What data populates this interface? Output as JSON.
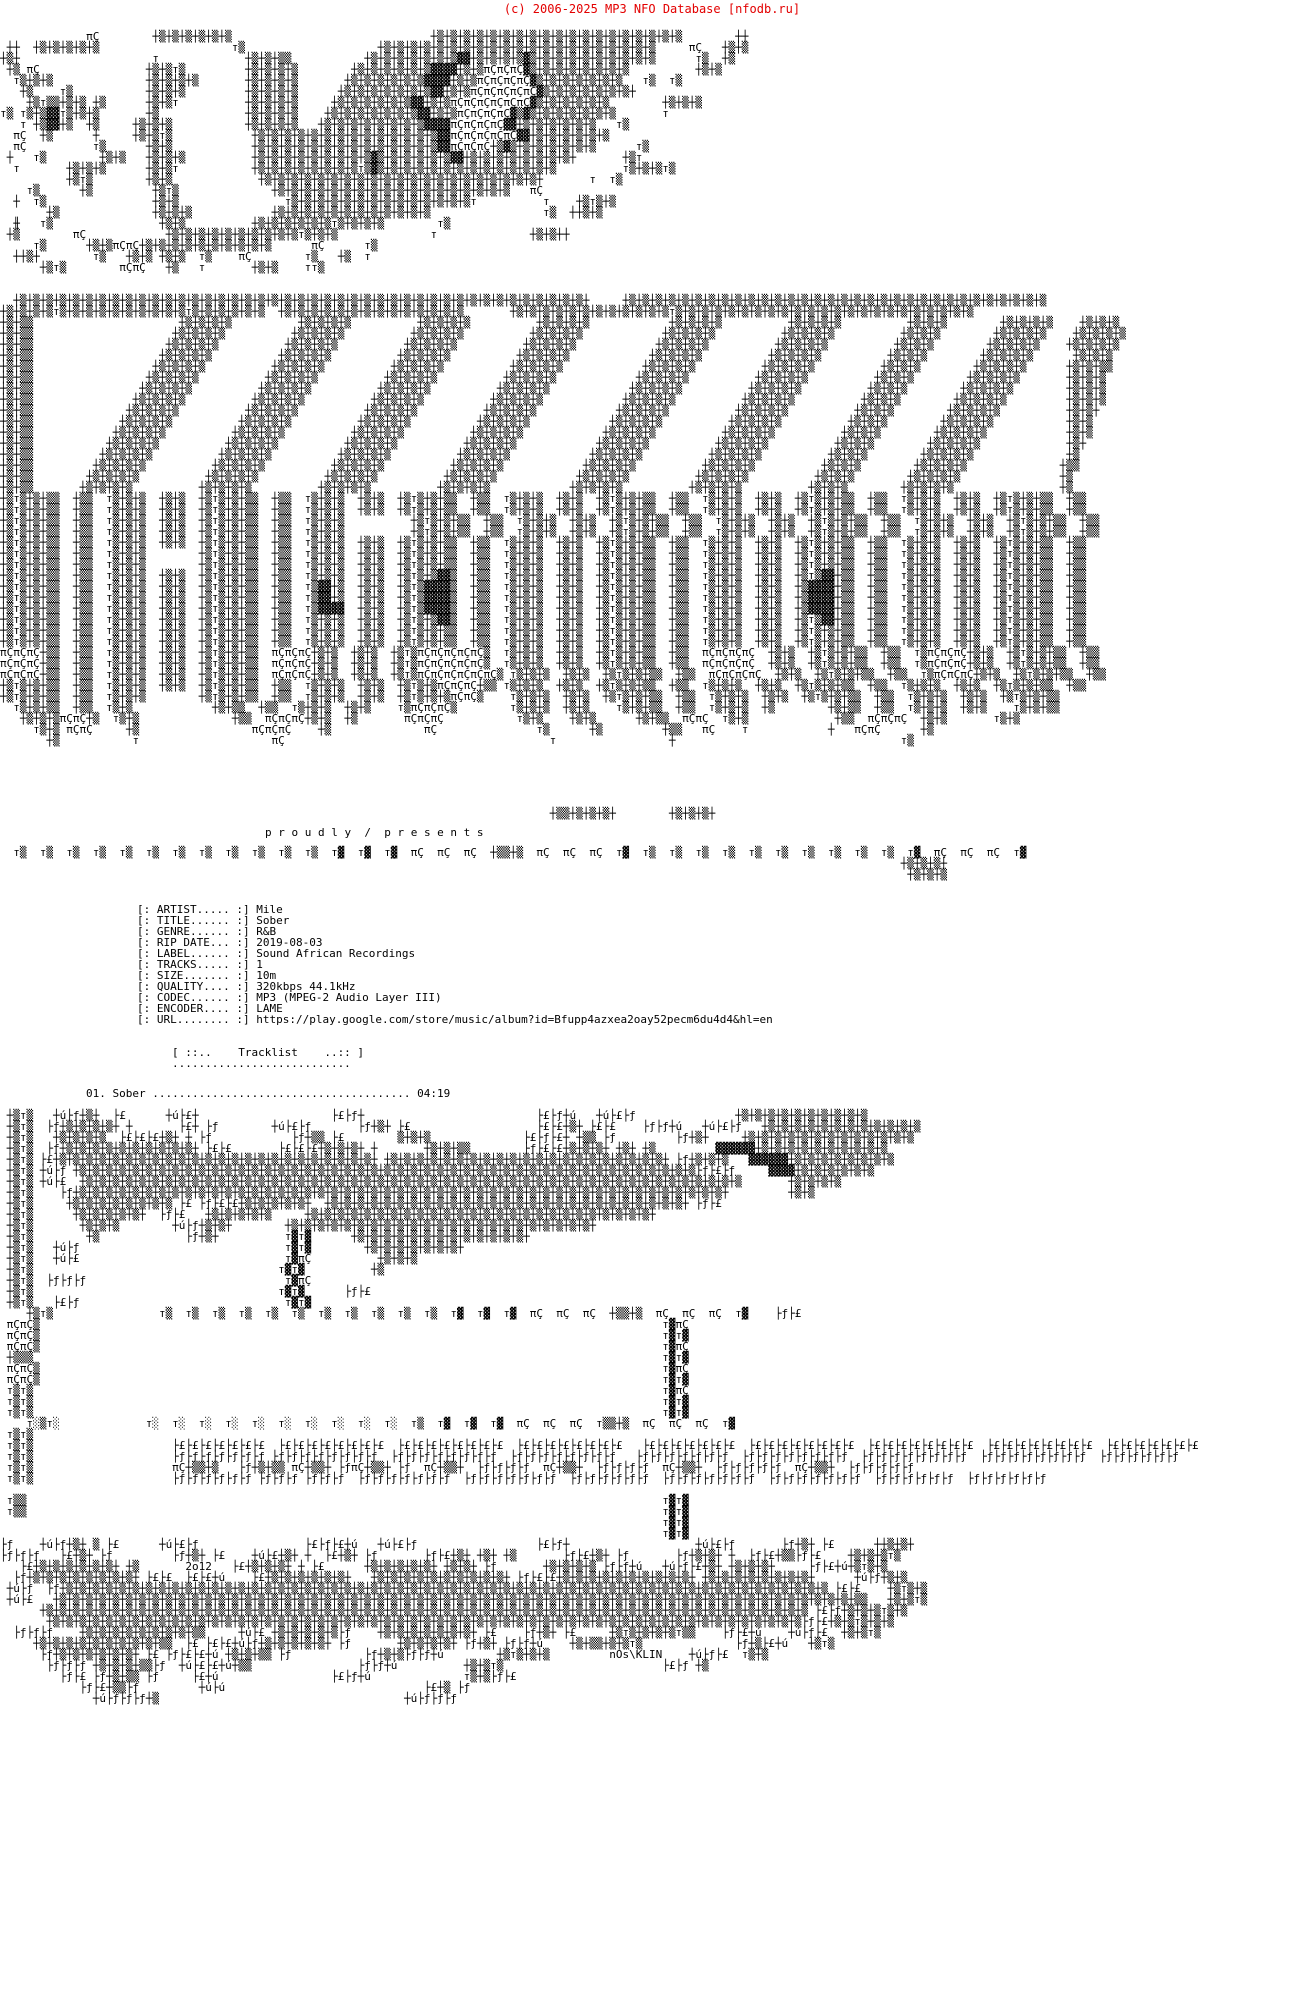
{
  "header": {
    "copyright": "(c) 2006-2025 MP3 NFO Database [nfodb.ru]"
  },
  "release": {
    "fields": [
      {
        "label": "[: ARTIST..... :]",
        "value": "Mile"
      },
      {
        "label": "[: TITLE...... :]",
        "value": "Sober"
      },
      {
        "label": "[: GENRE...... :]",
        "value": "R&B"
      },
      {
        "label": "[: RIP DATE... :]",
        "value": "2019-08-03"
      },
      {
        "label": "[: LABEL...... :]",
        "value": "Sound African Recordings"
      },
      {
        "label": "[: TRACKS..... :]",
        "value": "1"
      },
      {
        "label": "[: SIZE....... :]",
        "value": "10m"
      },
      {
        "label": "[: QUALITY.... :]",
        "value": "320kbps 44.1kHz"
      },
      {
        "label": "[: CODEC...... :]",
        "value": "MP3 (MPEG-2 Audio Layer III)"
      },
      {
        "label": "[: ENCODER.... :]",
        "value": "LAME"
      },
      {
        "label": "[: URL........ :]",
        "value": "https://play.google.com/store/music/album?id=Bfupp4azxea2oay52pecm6du4d4&hl=en"
      }
    ]
  },
  "tracklist": {
    "header": "[ ::..    Tracklist    ..:: ]",
    "underline": "...........................",
    "track": {
      "number": "01.",
      "title": "Sober",
      "leader": ".......................................",
      "duration": "04:19"
    }
  },
  "art": {
    "presents": "p r o u d l y  /  p r e s e n t s",
    "signature": {
      "year": "2o12",
      "artist_tag": "nOs\\KLIN"
    },
    "top": [
      "             πÇ        ┼▒┼▒┼▒┼▒┼▒┼▒                              ┼▒┼▒┼▒┼▒┼▒┼▒┼▒┼▒┼▒┼▒┼▒┼▒┼▒┼▒┼▒┼▒┼▒┼▒┼▒        ┼┼",
      " ┼┼  ┼▒┼▒┼▒┼▒┼▒                    т▒                    ┼▒┼▒┼▒┼▒┼▒┼▒┼▒┼▒┼▒┼▒┼▒┼▒┼▒┼▒┼▒┼▒┼▒┼▒┼▒┼▒┼▒     πÇ   ┼▒┼▒",
      "┼▒┼                    т             ┼▒┼▒┼▒▒           ┼▒┼▒┼▒┼▒┼▒┼▒┼▒▓▓┼▒┼▒┼▒┼▒▓▒┼▒┼▒┼▒┼▒┼▒┼▒┼▒┼▒┼▒      т▒  ┼▒",
      " ┼▒ πÇ                ┼▒┼▒т▒         ┼▒┼▒┼▒┼▒        ┼▒┼▒┼▒┼▒┼▒┼▒▓▓▓▓┼▒┼▒πÇπÇπÇ▓▒┼▒┼▒┼▒┼▒┼▒┼▒┼▒          ┼▒┼▒",
      "  т▒┼▒┼▒              ┼▒┼▒┼▒┼▒       ┼▒┼▒┼▒┼▒       ┼▒┼▒┼▒┼▒┼▒┼▒▓▓▓▓┼▒┼▒πÇπÇπÇπÇ▓▒┼▒┼▒┼▒┼▒┼▒┼▒   т▒  т▒",
      "   ┼▒    т▒           ┼▒┼▒┼▒         ┼▒┼▒┼▒┼▒      ┼▒┼▒┼▒┼▒┼▒┼▒┼▒▓▓┼▒┼▒πÇπÇπÇπÇπÇ▓▒┼▒┼▒┼▒┼▒┼▒┼▒┼",
      "    ┼▒т▒▒┼▒┼▒ ┼▒      ┼▒┼▒т          ┼▒┼▒┼▒┼▒     ┼▒┼▒┼▒┼▒┼▒┼▒▓▓┼▒┼▒πÇπÇπÇπÇπÇπÇ▓▒┼▒┼▒┼▒┼▒┼▒        ┼▒┼▒┼▒",
      "т▒ т▒┼▒▓▓т▒┼▒┼▒       ┼▒             ┼▒┼▒┼▒┼▒    ┼▒┼▒┼▒┼▒┼▒┼▒┼▒▓▓┼▒┼▒πÇπÇπÇπÇ▓▒▓▒┼▒┼▒┼▒┼▒┼▒┼▒       т",
      "   т ┼▒▓▓┼▒  ┼▒     ┼▒┼▒┼▒           ┼▒┼▒┼▒┼▒   ┼▒┼▒┼▒┼▒┼▒┼▒┼▒┼▒▓▓▓▓πÇπÇπÇπÇ▓▓┼▒┼▒┼▒┼▒┼▒┼▒   т▒",
      "  πÇ  ┼▒      ┼     ┼▒┼▒т▒            ┼▒┼▒┼▒┼▒┼▒┼▒┼▒┼▒┼▒┼▒┼▒┼▒┼▒┼▒▓▓πÇπÇπÇπÇπÇ▓▓┼▒┼▒┼▒┼▒┼▒┼▒",
      "  πÇ          т▒      ┼▒┼▒            ┼▒┼▒┼▒┼▒┼▒┼▒┼▒┼▒┼▒┼▒┼▒┼▒┼▒┼▒▓▓πÇπÇπÇ┼▒▓▒┼▒┼▒┼▒┼▒┼▒┼▒      т▒",
      " ┼   т▒        ┼▒┼▒   ┼▒┼▒┼▒          ┼▒┼▒┼▒┼▒┼▒┼▒┼▒┼▒┼▒▓▒┼▒┼▒┼▒┼▒┼▒▓▓┼▒┼▒┼▒┼▒┼▒┼▒┼▒┼▒┼       ┼▒т",
      "  т       ┼▒┼▒┼▒      ┼▒┼▒т           ┼▒┼▒┼▒┼▒┼▒┼▒┼▒┼▒т▒▓▒┼▒┼▒┼▒┼▒┼▒┼▒┼▒┼▒┼▒┼▒┼▒┼▒┼▒          т▒┼▒┼▒т▒",
      "          ┼▒т▒        ┼▒┼▒             ┼▒┼▒┼▒┼▒┼▒┼▒┼▒┼▒┼▒┼▒┼▒┼▒┼▒┼▒┼▒┼▒┼▒┼▒┼▒┼▒┼▒┼       т  т▒",
      "    т▒      ┼▒         ┼▒т▒              ┼▒┼▒┼▒┼▒┼▒┼▒┼▒┼▒┼▒┼▒┼▒┼▒┼▒┼▒┼▒┼▒┼▒┼▒   πÇ",
      "  ┼  т▒                ┼▒┼▒                т▒┼▒┼▒┼▒┼▒┼▒┼▒┼▒┼▒┼▒┼▒┼▒┼▒┼▒т          т    ┼▒т▒┼▒",
      "       ┼▒              ┼▒┼▒┼▒            ┼▒┼▒┼▒┼▒┼▒┼▒┼▒┼▒┼▒┼▒┼▒┼▒                 т▒  ┼┼▒┼▒",
      "  ╫   т▒                ┼▒┼▒          ┼▒┼▒┼▒┼▒┼▒┼▒т▒┼▒┼▒┼▒        т▒",
      " ┼▒        πÇ            ┼▒┼▒┼▒┼▒┼▒┼▒┼▒┼▒┼▒┼▒т▒┼▒┼▒              т              ┼▒┼▒┼┼",
      "     т▒      ┼▒┼▒πÇπÇ┼▒┼▒┼▒┼▒┼▒┼▒┼▒┼▒┼▒┼▒      πÇ      т▒",
      "  ┼┼▒┼        т▒   ┼▒┼▒ ┼▒┼▒  т▒    πÇ        т▒   ┼▒  т",
      "      ┼▒т▒        πÇπÇ   ┼▒   т       ┼▒┼▒    тт▒"
    ],
    "middle": [
      "  ┼▒┼▒┼▒┼▒┼▒┼▒┼▒┼▒┼▒┼▒┼▒┼▒┼▒┼▒┼▒┼▒┼▒┼▒┼▒┼▒┼▒┼▒┼▒┼▒┼▒┼▒┼▒┼▒┼▒┼▒┼▒┼▒┼▒┼▒┼▒┼▒┼▒┼▒┼▒┼▒┼▒┼▒┼▒┼     ┼▒┼▒┼▒┼▒┼▒┼▒┼▒┼▒┼▒┼▒┼▒┼▒┼▒┼▒┼▒┼▒┼▒┼▒┼▒┼▒┼▒┼▒┼▒┼▒┼▒┼▒┼▒┼▒┼▒┼▒┼▒┼▒",
      "┼▒┼▒┼▒┼▒т▒┼▒┼▒┼▒┼▒┼▒┼▒┼▒┼▒┼▒т▒┼▒┼▒┼▒┼▒┼▒  ┼▒┼▒┼▒┼▒┼▒┼▒┼▒┼▒┼▒┼▒┼▒┼▒┼▒┼▒       ┼▒┼▒┼▒┼▒┼▒┼▒┼▒┼▒┼▒┼▒┼▒┼▒т▒┼▒┼▒┼▒┼▒┼▒┼▒┼▒┼▒┼▒┼▒┼▒┼▒┼▒┼▒┼▒┼▒┼▒┼▒┼▒┼▒┼▒┼▒",
      "┼▒┼▒▒                      ┼▒┼▒┼▒┼▒          ┼▒┼▒┼▒┼▒          ┼▒┼▒┼▒┼▒          ┼▒┼▒┼▒┼▒            ┼▒┼▒┼▒┼▒          ┼▒┼▒┼▒┼▒          ┼▒┼▒┼▒        ┼▒┼▒┼▒┼▒    ┼▒┼▒┼▒",
      "┼▒┼▒▒                     ┼▒┼▒┼▒┼▒          ┼▒┼▒┼▒┼▒          ┼▒┼▒┼▒┼▒          ┼▒┼▒┼▒┼▒            ┼▒┼▒┼▒┼▒          ┼▒┼▒┼▒┼▒          ┼▒┼▒┼▒        ┼▒┼▒┼▒┼▒    ┼▒┼▒┼▒┼▒",
      "┼▒┼▒▒                    ┼▒┼▒┼▒┼▒          ┼▒┼▒┼▒┼▒          ┼▒┼▒┼▒┼▒          ┼▒┼▒┼▒┼▒            ┼▒┼▒┼▒┼▒          ┼▒┼▒┼▒┼▒          ┼▒┼▒┼▒        ┼▒┼▒┼▒┼▒    ┼▒┼▒┼▒┼▒",
      "┼▒┼▒▒                   ┼▒┼▒┼▒┼▒          ┼▒┼▒┼▒┼▒          ┼▒┼▒┼▒┼▒          ┼▒┼▒┼▒┼▒            ┼▒┼▒┼▒┼▒          ┼▒┼▒┼▒┼▒          ┼▒┼▒┼▒        ┼▒┼▒┼▒┼▒      ┼▒┼▒┼▒",
      "┼▒┼▒▒                  ┼▒┼▒┼▒┼▒          ┼▒┼▒┼▒┼▒          ┼▒┼▒┼▒┼▒          ┼▒┼▒┼▒┼▒            ┼▒┼▒┼▒┼▒          ┼▒┼▒┼▒┼▒          ┼▒┼▒┼▒        ┼▒┼▒┼▒┼▒      ┼▒┼▒┼▒▒",
      "┼▒┼▒▒                 ┼▒┼▒┼▒┼▒          ┼▒┼▒┼▒┼▒          ┼▒┼▒┼▒┼▒          ┼▒┼▒┼▒┼▒            ┼▒┼▒┼▒┼▒          ┼▒┼▒┼▒┼▒          ┼▒┼▒┼▒        ┼▒┼▒┼▒┼▒       ┼▒┼▒┼▒",
      "┼▒┼▒▒                ┼▒┼▒┼▒┼▒          ┼▒┼▒┼▒┼▒          ┼▒┼▒┼▒┼▒          ┼▒┼▒┼▒┼▒            ┼▒┼▒┼▒┼▒          ┼▒┼▒┼▒┼▒          ┼▒┼▒┼▒        ┼▒┼▒┼▒┼▒        ┼▒┼▒┼▒",
      "┼▒┼▒▒               ┼▒┼▒┼▒┼▒          ┼▒┼▒┼▒┼▒          ┼▒┼▒┼▒┼▒          ┼▒┼▒┼▒┼▒            ┼▒┼▒┼▒┼▒          ┼▒┼▒┼▒┼▒          ┼▒┼▒┼▒        ┼▒┼▒┼▒┼▒         ┼▒┼▒┼▒",
      "┼▒┼▒▒              ┼▒┼▒┼▒┼▒          ┼▒┼▒┼▒┼▒          ┼▒┼▒┼▒┼▒          ┼▒┼▒┼▒┼▒            ┼▒┼▒┼▒┼▒          ┼▒┼▒┼▒┼▒          ┼▒┼▒┼▒        ┼▒┼▒┼▒┼▒          ┼▒┼▒┼",
      "┼▒┼▒▒             ┼▒┼▒┼▒┼▒          ┼▒┼▒┼▒┼▒          ┼▒┼▒┼▒┼▒          ┼▒┼▒┼▒┼▒            ┼▒┼▒┼▒┼▒          ┼▒┼▒┼▒┼▒          ┼▒┼▒┼▒        ┼▒┼▒┼▒┼▒           ┼▒┼▒",
      "┼▒┼▒▒            ┼▒┼▒┼▒┼▒          ┼▒┼▒┼▒┼▒          ┼▒┼▒┼▒┼▒          ┼▒┼▒┼▒┼▒            ┼▒┼▒┼▒┼▒          ┼▒┼▒┼▒┼▒          ┼▒┼▒┼▒        ┼▒┼▒┼▒┼▒            ┼▒┼▒",
      "┼▒┼▒▒           ┼▒┼▒┼▒┼▒          ┼▒┼▒┼▒┼▒          ┼▒┼▒┼▒┼▒          ┼▒┼▒┼▒┼▒            ┼▒┼▒┼▒┼▒          ┼▒┼▒┼▒┼▒          ┼▒┼▒┼▒        ┼▒┼▒┼▒┼▒             ┼▒┼",
      "┼▒┼▒▒          ┼▒┼▒┼▒┼▒          ┼▒┼▒┼▒┼▒          ┼▒┼▒┼▒┼▒          ┼▒┼▒┼▒┼▒            ┼▒┼▒┼▒┼▒          ┼▒┼▒┼▒┼▒          ┼▒┼▒┼▒        ┼▒┼▒┼▒┼▒              ┼▒",
      "┼▒┼▒▒         ┼▒┼▒┼▒┼▒          ┼▒┼▒┼▒┼▒          ┼▒┼▒┼▒┼▒          ┼▒┼▒┼▒┼▒            ┼▒┼▒┼▒┼▒          ┼▒┼▒┼▒┼▒          ┼▒┼▒┼▒        ┼▒┼▒┼▒┼▒              ┼▒▒",
      "┼▒┼▒▒        ┼▒┼▒┼▒┼▒          ┼▒┼▒┼▒┼▒          ┼▒┼▒┼▒┼▒          ┼▒┼▒┼▒┼▒            ┼▒┼▒┼▒┼▒          ┼▒┼▒┼▒┼▒          ┼▒┼▒┼▒        ┼▒┼▒┼▒┼▒               ┼▒",
      "┼▒┼▒▒       ┼▒┼▒┼▒┼▒          ┼▒┼▒┼▒┼▒          ┼▒┼▒┼▒┼▒          ┼▒┼▒┼▒┼▒            ┼▒┼▒┼▒┼▒          ┼▒┼▒┼▒┼▒          ┼▒┼▒┼▒        ┼▒┼▒┼▒┼▒                ┼▒",
      "┼▒т▒┼▒┼▒▒  ┼▒▒  т▒┼▒┼▒  ┼▒┼▒  ┼▒т▒┼▒┼▒▒  ┼▒▒  т▒┼▒┼▒  ┼▒┼▒  ┼▒т▒┼▒┼▒▒  ┼▒▒  т▒┼▒┼▒  ┼▒┼▒  ┼▒т▒┼▒┼▒▒  ┼▒▒  т▒┼▒┼▒  ┼▒┼▒  ┼▒т▒┼▒┼▒▒  ┼▒▒  т▒┼▒┼▒  ┼▒┼▒  ┼▒т▒┼▒┼▒▒  ┼▒▒",
      "┼▒т▒┼▒┼▒▒  ┼▒▒  т▒┼▒┼▒  ┼▒┼▒  ┼▒т▒┼▒┼▒▒  ┼▒▒  т▒┼▒┼▒  ┼▒┼▒  ┼▒т▒┼▒┼▒▒  ┼▒▒  т▒┼▒┼▒  ┼▒┼▒  ┼▒т▒┼▒┼▒▒  ┼▒▒  т▒┼▒┼▒  ┼▒┼▒  ┼▒т▒┼▒┼▒▒  ┼▒▒  т▒┼▒┼▒  ┼▒┼▒  ┼▒т▒┼▒┼▒▒  ┼▒▒",
      "┼▒т▒┼▒┼▒▒  ┼▒▒  т▒┼▒┼▒  ┼▒┼▒  ┼▒т▒┼▒┼▒▒  ┼▒▒  т▒┼▒┼▒          ┼▒т▒┼▒┼▒▒  ┼▒▒  т▒┼▒┼▒  ┼▒┼▒  ┼▒т▒┼▒┼▒▒  ┼▒▒  т▒┼▒┼▒  ┼▒┼▒  ┼▒т▒┼▒┼▒▒  ┼▒▒  т▒┼▒┼▒  ┼▒┼▒  ┼▒т▒┼▒┼▒▒  ┼▒▒",
      "┼▒т▒┼▒┼▒▒  ┼▒▒  т▒┼▒┼▒  ┼▒┼▒  ┼▒т▒┼▒┼▒▒  ┼▒▒  т▒┼▒┼▒          ┼▒т▒┼▒┼▒▒  ┼▒▒  т▒┼▒┼▒  ┼▒┼▒  ┼▒т▒┼▒┼▒▒  ┼▒▒  т▒┼▒┼▒  ┼▒┼▒  ┼▒т▒┼▒┼▒▒  ┼▒▒  т▒┼▒┼▒  ┼▒┼▒  ┼▒т▒┼▒┼▒▒  ┼▒▒",
      "┼▒т▒┼▒┼▒▒  ┼▒▒  т▒┼▒┼▒  ┼▒┼▒  ┼▒т▒┼▒┼▒▒  ┼▒▒  т▒┼▒┼▒  ┼▒┼▒  ┼▒т▒┼▒┼▒▒  ┼▒▒  т▒┼▒┼▒  ┼▒┼▒  ┼▒т▒┼▒┼▒▒  ┼▒▒  т▒┼▒┼▒  ┼▒┼▒  ┼▒т▒┼▒┼▒▒  ┼▒▒  т▒┼▒┼▒  ┼▒┼▒  ┼▒т▒┼▒┼▒▒  ┼▒▒",
      "┼▒т▒┼▒┼▒▒  ┼▒▒  т▒┼▒┼▒        ┼▒т▒┼▒┼▒▒  ┼▒▒  т▒┼▒┼▒  ┼▒┼▒  ┼▒т▒┼▒┼▒▒  ┼▒▒  т▒┼▒┼▒  ┼▒┼▒  ┼▒т▒┼▒┼▒▒  ┼▒▒  т▒┼▒┼▒  ┼▒┼▒  ┼▒т▒┼▒┼▒▒  ┼▒▒  т▒┼▒┼▒  ┼▒┼▒  ┼▒т▒┼▒┼▒▒  ┼▒▒",
      "┼▒т▒┼▒┼▒▒  ┼▒▒  т▒┼▒┼▒        ┼▒т▒┼▒┼▒▒  ┼▒▒  т▒┼▒┼▒  ┼▒┼▒  ┼▒т▒┼▒┼▒▒  ┼▒▒  т▒┼▒┼▒  ┼▒┼▒  ┼▒т▒┼▒┼▒▒  ┼▒▒  т▒┼▒┼▒  ┼▒┼▒  ┼▒т▒┼▒┼▒▒  ┼▒▒  т▒┼▒┼▒  ┼▒┼▒  ┼▒т▒┼▒┼▒▒  ┼▒▒",
      "┼▒т▒┼▒┼▒▒  ┼▒▒  т▒┼▒┼▒  ┼▒┼▒  ┼▒т▒┼▒┼▒▒  ┼▒▒  т▒┼▒┼▒  ┼▒┼▒  ┼▒т▒┼▒▓▓▒  ┼▒▒  т▒┼▒┼▒  ┼▒┼▒  ┼▒т▒┼▒┼▒▒  ┼▒▒  т▒┼▒┼▒  ┼▒┼▒  ┼▒т▒▓▓┼▒▒  ┼▒▒  т▒┼▒┼▒  ┼▒┼▒  ┼▒т▒┼▒┼▒▒  ┼▒▒",
      "┼▒т▒┼▒┼▒▒  ┼▒▒  т▒┼▒┼▒  ┼▒┼▒  ┼▒т▒┼▒┼▒▒  ┼▒▒  т▒▓▓┼▒  ┼▒┼▒  ┼▒т▒▓▓▓▓▒  ┼▒▒  т▒┼▒┼▒  ┼▒┼▒  ┼▒т▒┼▒┼▒▒  ┼▒▒  т▒┼▒┼▒  ┼▒┼▒  ┼▒▓▓▓▓┼▒▒  ┼▒▒  т▒┼▒┼▒  ┼▒┼▒  ┼▒т▒┼▒┼▒▒  ┼▒▒",
      "┼▒т▒┼▒┼▒▒  ┼▒▒  т▒┼▒┼▒  ┼▒┼▒  ┼▒т▒┼▒┼▒▒  ┼▒▒  т▒▓▓┼▒  ┼▒┼▒  ┼▒т▒▓▓▓▓▒  ┼▒▒  т▒┼▒┼▒  ┼▒┼▒  ┼▒т▒┼▒┼▒▒  ┼▒▒  т▒┼▒┼▒  ┼▒┼▒  ┼▒▓▓▓▓┼▒▒  ┼▒▒  т▒┼▒┼▒  ┼▒┼▒  ┼▒т▒┼▒┼▒▒  ┼▒▒",
      "┼▒т▒┼▒┼▒▒  ┼▒▒  т▒┼▒┼▒  ┼▒┼▒  ┼▒т▒┼▒┼▒▒  ┼▒▒  т▒▓▓▓▓  ┼▒┼▒  ┼▒т▒▓▓▓▓▒  ┼▒▒  т▒┼▒┼▒  ┼▒┼▒  ┼▒т▒┼▒┼▒▒  ┼▒▒  т▒┼▒┼▒  ┼▒┼▒  ┼▒▓▓▓▓┼▒▒  ┼▒▒  т▒┼▒┼▒  ┼▒┼▒  ┼▒т▒┼▒┼▒▒  ┼▒▒",
      "┼▒т▒┼▒┼▒▒  ┼▒▒  т▒┼▒┼▒  ┼▒┼▒  ┼▒т▒┼▒┼▒▒  ┼▒▒  т▒┼▒┼▒  ┼▒┼▒  ┼▒т▒┼▒▓▓▒  ┼▒▒  т▒┼▒┼▒  ┼▒┼▒  ┼▒т▒┼▒┼▒▒  ┼▒▒  т▒┼▒┼▒  ┼▒┼▒  ┼▒т▒▓▓┼▒▒  ┼▒▒  т▒┼▒┼▒  ┼▒┼▒  ┼▒т▒┼▒┼▒▒  ┼▒▒",
      "┼▒т▒┼▒┼▒▒  ┼▒▒  т▒┼▒┼▒  ┼▒┼▒  ┼▒т▒┼▒┼▒▒  ┼▒▒  т▒┼▒┼▒  ┼▒┼▒  ┼▒т▒┼▒┼▒▒  ┼▒▒  т▒┼▒┼▒  ┼▒┼▒  ┼▒т▒┼▒┼▒▒  ┼▒▒  т▒┼▒┼▒  ┼▒┼▒  ┼▒т▒┼▒┼▒▒  ┼▒▒  т▒┼▒┼▒  ┼▒┼▒  ┼▒т▒┼▒┼▒▒  ┼▒▒",
      "┼▒т▒┼▒┼▒▒  ┼▒▒  т▒┼▒┼▒  ┼▒┼▒  ┼▒т▒┼▒┼▒▒  ┼▒▒  т▒┼▒┼▒  ┼▒┼▒  ┼▒т▒┼▒┼▒▒  ┼▒▒  т▒┼▒┼▒  ┼▒┼▒  ┼▒т▒┼▒┼▒▒  ┼▒▒  т▒┼▒┼▒  ┼▒┼▒  ┼▒т▒┼▒┼▒▒  ┼▒▒  т▒┼▒┼▒  ┼▒┼▒  ┼▒т▒┼▒┼▒▒  ┼▒▒",
      "πÇπÇπÇ┼▒▒  ┼▒▒  т▒┼▒┼▒  ┼▒┼▒  ┼▒т▒┼▒┼▒▒  πÇπÇπÇ┼▒┼▒  ┼▒┼▒  ┼▒т▒πÇπÇπÇπÇπÇ▒  т▒┼▒┼▒  ┼▒┼▒  ┼▒т▒┼▒┼▒▒  ┼▒▒  πÇπÇπÇπÇ  ┼▒┼▒  ┼▒т▒┼▒┼▒▒  ┼▒▒  т▒πÇπÇπÇ┼▒┼▒  ┼▒т▒┼▒┼▒▒  ┼▒▒",
      "πÇπÇπÇ┼▒▒  ┼▒▒  т▒┼▒┼▒  ┼▒┼▒  ┼▒т▒┼▒┼▒▒  πÇπÇπÇ┼▒┼▒  ┼▒┼▒  ┼▒т▒πÇπÇπÇπÇπÇ▒  т▒┼▒┼▒  ┼▒┼▒  ┼▒т▒┼▒┼▒▒  ┼▒▒  πÇπÇπÇπÇ  ┼▒┼▒  ┼▒т▒┼▒┼▒▒  ┼▒▒  т▒πÇπÇπÇ┼▒┼▒  ┼▒т▒┼▒┼▒▒  ┼▒▒",
      "πÇπÇπÇ┼▒▒  ┼▒▒  т▒┼▒┼▒  ┼▒┼▒  ┼▒т▒┼▒┼▒▒  πÇπÇπÇ┼▒┼▒  ┼▒┼▒  ┼▒т▒πÇπÇπÇπÇπÇπÇ▒ т▒┼▒┼▒  ┼▒┼▒  ┼▒т▒┼▒┼▒▒  ┼▒▒  πÇπÇπÇπÇ  ┼▒┼▒  ┼▒т▒┼▒┼▒▒  ┼▒▒  т▒πÇπÇπÇ┼▒┼▒  ┼▒т▒┼▒┼▒▒  ┼▒▒",
      "┼▒т▒┼▒┼▒▒  ┼▒▒  т▒┼▒┼▒  ┼▒┼▒  ┼▒т▒┼▒┼▒▒  ┼▒▒  т▒┼▒┼▒  ┼▒┼▒  ┼▒т▒┼▒πÇπÇπÇ┼▒▒ т▒┼▒┼▒  ┼▒┼▒  ┼▒т▒┼▒┼▒▒  ┼▒▒  т▒┼▒┼▒  ┼▒┼▒  ┼▒т▒┼▒┼▒▒  ┼▒▒  т▒┼▒┼▒  ┼▒┼▒  ┼▒т▒┼▒┼▒▒  ┼▒▒",
      "┼▒т▒┼▒┼▒▒  ┼▒▒  т▒┼▒┼▒        ┼▒т▒┼▒┼▒▒  ┼▒▒  т▒┼▒┼▒  ┼▒┼▒  ┼▒т▒┼▒┼▒πÇπÇ▒    т▒┼▒┼▒  ┼▒┼▒  ┼▒т▒┼▒┼▒▒  ┼▒▒  т▒┼▒┼▒  ┼▒┼▒  ┼▒т▒┼▒┼▒▒  ┼▒▒  т▒┼▒┼▒  ┼▒┼▒  ┼▒т▒┼▒┼▒▒",
      "  т▒┼▒┼▒▒  ┼▒▒  т▒┼▒            ┼▒┼▒▒  ┼▒▒  т▒┼▒┼▒  ┼▒┼▒    т▒πÇπÇπÇ▒        т▒┼▒┼▒  ┼▒┼▒    т▒┼▒┼▒▒  ┼▒▒  т▒┼▒┼▒  ┼▒        ┼▒┼▒▒  ┼▒▒  т▒┼▒┼▒  ┼▒┼▒    т▒┼▒┼▒▒",
      "   ┼▒┼▒┼▒πÇπÇ┼▒  т▒┼▒              ┼▒▒  πÇπÇπÇ┼▒┼▒  ┼▒       πÇπÇπÇ           т▒┼▒    ┼▒┼▒      ┼▒┼▒▒  πÇπÇ  т▒┼▒             ┼▒▒  πÇπÇπÇ  ┼▒┼▒       т▒┼▒",
      "     т▒┼▒ πÇπÇ     ┼▒                 πÇπÇπÇ    ┼▒              πÇ               т▒      ┼▒         ┼▒▒   πÇ    т            ┼   πÇπÇ      ┼▒",
      "       ┼▒           т                    πÇ                                        т                 ┼                                  т▒"
    ],
    "presents_cluster": [
      "                                                                                   ┼▒▒┼▒┼▒┼▒┼        ┼▒┼▒┼▒┼"
    ],
    "divider": [
      "  т▒  т▒  т▒  т▒  т▒  т▒  т▒  т▒  т▒  т▒  т▒  т▒  т▓  т▓  т▓  πÇ  πÇ  πÇ  ┼▒▒┼▒  πÇ  πÇ  πÇ  т▓  т▒  т▒  т▒  т▒  т▒  т▒  т▒  т▒  т▒  т▒  т▓  πÇ  πÇ  πÇ  т▓",
      "                                                                                                                                        ┼▒┼▒┼▒┼",
      "                                                                                                                                         ┼▒┼▒┼▒"
    ],
    "bottom": [
      " ┼▒т▒   ┼ú├ƒ┼▒┼  ├£      ┼ú├£┼                    ├£├ƒ┼                          ├£├ƒ┼ú   ┼ú├£├ƒ               ┼▒┼▒┼▒┼▒┼▒┼▒┼▒┼▒┼▒┼▒",
      " ┼▒т▒  ├ƒ┼▒┼▒┼▒┼▒┼ ┼       ├£┼ ├ƒ        ┼ú├£├ƒ       ├ƒ┼▒┼ ├£                   ├£├£┼▒┼ ├£├£    ├ƒ├ƒ┼ú   ┼ú├£├ƒ   ┼▒┼▒┼▒┼▒┼▒┼▒┼▒┼▒┼▒┼▒┼▒┼▒",
      " ┼▒т▒   ┼▒┼▒┼▒┼▒  ├£├£├£┼▒┼ ┼ ├ƒ            ├ƒ┼▒▒ ├£        ▒┼▒┼▒              ├£├ƒ├£┼ ┼▒▒ ├ƒ         ├ƒ┼▒┼     ┼▒┼▒┼▒┼▒┼▒┼▒┼▒┼▒┼▒┼▒┼▒┼▒┼▒",
      " ┼▒т▒  ├ƒ┼▒┼▒┼▒┼▒┼▒┼▒┼▒┼▒┼▒┼▒┼ ├£├£       ├£├£├£┼▒┼▒┼▒┼ ┼       ┼▒┼▒┼▒▒        ├ƒ├£├£┼▒┼▒┼▒┼ ┼▒┼ ┼▒         ▓▓▓▓▓▓┼▒┼▒┼▒┼▒┼▒┼▒┼▒┼▒┼▒┼▒",
      " ┼▒т▒ ├£┼▒┼▒┼▒┼▒┼▒┼▒┼▒┼▒┼▒┼▒┼▒┼▒┼▒┼▒┼▒┼▒┼▒┼▒┼▒┼▒┼▒┼▒┼▒┼▒┼ ┼▒┼▒┼▒┼▒┼▒┼▒┼▒┼▒┼▒┼▒┼▒┼▒┼▒┼▒┼▒┼▒┼▒┼▒┼▒┼▒┼▒┼ ├ƒ┼▒┼▒┼▒   ▓▓▓▓▓▓┼▒┼▒┼▒┼▒┼▒┼▒┼▒┼▒",
      " ┼▒т▒ ┼ú├ƒ ┼▒┼▒┼▒┼▒┼▒┼▒┼▒┼▒┼▒┼▒┼▒┼▒┼▒┼▒┼▒┼▒┼▒┼▒┼▒┼▒┼▒┼▒┼▒┼▒┼▒┼▒┼▒┼▒┼▒┼▒┼▒┼▒┼▒┼▒┼▒┼▒┼▒┼▒┼▒┼▒┼▒┼▒┼▒┼▒┼▒┼▒┼▒├ƒ├£├ƒ     ▓▓▓▓┼▒┼▒┼▒┼▒┼▒┼▒",
      " ┼▒т▒ ┼ú├£  ┼▒┼▒┼▒┼▒┼▒┼▒┼▒┼▒┼▒┼▒┼▒┼▒┼▒┼▒┼▒┼▒┼▒┼▒┼▒┼▒┼▒┼▒┼▒┼▒┼▒┼▒┼▒┼▒┼▒┼▒┼▒┼▒┼▒┼▒┼▒┼▒┼▒┼▒┼▒┼▒┼▒┼▒┼▒┼▒┼▒┼▒┼▒┼▒┼▒┼▒       ┼▒┼▒┼▒┼▒",
      " ┼▒т▒    ├ƒ┼▒┼▒┼▒┼▒┼▒┼▒┼▒┼▒┼▒┼▒┼▒┼▒┼▒┼▒┼▒┼▒┼▒┼▒┼▒┼▒┼▒┼▒┼▒┼▒┼▒┼▒┼▒┼▒┼▒┼▒┼▒┼▒┼▒┼▒┼▒┼▒┼▒┼▒┼▒┼▒┼▒┼▒┼▒┼▒┼▒┼▒┼▒┼▒┼▒┼         ┼▒┼▒",
      " ┼▒т▒     ┼▒┼▒┼▒┼▒┼▒┼▒┼▒┼▒ ├£ ├ƒ├£├£┼▒┼▒┼▒┼▒┼▒┼  ┼▒┼▒┼▒┼▒┼▒┼▒┼▒┼▒┼▒┼▒┼▒┼▒┼▒┼▒┼▒┼▒┼▒┼▒┼▒┼▒┼▒┼▒┼▒┼▒┼▒┼▒┼▒┼ ├ƒ├£",
      " ┼▒т▒      ┼▒┼▒┼▒┼▒┼▒┼  ├ƒ├£   ┼▒┼▒┼▒┼▒┼▒     ┼▒┼▒┼▒┼▒┼▒┼▒┼▒┼▒┼▒┼▒┼▒┼▒┼▒┼▒┼▒┼▒┼▒┼▒┼▒┼▒┼▒┼▒┼▒┼▒┼▒┼▒┼",
      " ┼▒т▒       ┼▒┼▒┼▒        ┼ú├ƒ┼▒┼▒┼        ┼▒┼▒┼▒┼▒┼▒┼▒┼▒┼▒┼▒┼▒┼▒┼▒┼▒┼▒┼▒┼▒┼▒┼▒┼▒┼▒┼▒┼▒┼▒┼",
      " ┼▒т▒        ┼▒             ├ƒ┼▒┼          т▓т▓      ┼▒┼▒┼▒┼▒┼▒┼▒┼▒┼▒┼▒┼▒┼▒┼▒┼▒┼",
      " ┼▒т▒   ┼ú├ƒ                               т▓т▓        ┼▒┼▒┼▒┼▒┼▒┼▒┼▒┼",
      " ┼▒т▒   ┼ú├£                               т▓πÇ          ┼▒┼▒┼▒",
      " ┼▒т▒                                     т▓т▓          ┼▒",
      " ┼▒т▒  ├ƒ├ƒ├ƒ                              т▓πÇ",
      " ┼▒т▒                                     т▓т▓      ├ƒ├£",
      " ┼▒т▒   ├£├ƒ                               т▓т▓",
      "    ┼▒т▒                т▒  т▒  т▒  т▒  т▒  т▒  т▒  т▒  т▒  т▒  т▒  т▓  т▓  т▓  πÇ  πÇ  πÇ  ┼▒▒┼▒  πÇ  πÇ  πÇ  т▓    ├ƒ├£",
      " πÇπÇ▒                                                                                              т▓πÇ",
      " πÇπÇ▒                                                                                              т▓т▓",
      " πÇπÇ▒                                                                                              т▓πÇ",
      " ┼▒▒▒                                                                                               т▓т▓",
      " πÇπÇ▒                                                                                              т▓πÇ",
      " πÇπÇ▒                                                                                              т▓т▓",
      " т▒т▒                                                                                               т▓πÇ",
      " т▒т▒                                                                                               т▓т▓",
      " т▒т▒                                                                                               т▓т▓",
      "    т░▒т░             т░  т░  т░  т░  т░  т░  т░  т░  т░  т░  т▒  т▓  т▓  т▓  πÇ  πÇ  πÇ  т▒▒┼▒  πÇ  πÇ  πÇ  т▓",
      " т▒т▒",
      " т▒т▒                     ├£├£├£├£├£├£├£  ├£├£├£├£├£├£├£├£  ├£├£├£├£├£├£├£├£  ├£├£├£├£├£├£├£├£   ├£├£├£├£├£├£├£  ├£├£├£├£├£├£├£├£  ├£├£├£├£├£├£├£├£  ├£├£├£├£├£├£├£├£  ├£├£├£├£├£├£├£",
      " т▒т▒                     ├ƒ├ƒ├ƒ├ƒ├ƒ├ƒ├ƒ ├ƒ├ƒ├ƒ├ƒ├ƒ├ƒ├ƒ├ƒ  ├ƒ├ƒ├ƒ├ƒ├ƒ├ƒ├ƒ├ƒ  ├ƒ├ƒ├ƒ├ƒ├ƒ├ƒ├ƒ├ƒ   ├ƒ├ƒ├ƒ├ƒ├ƒ├ƒ├ƒ  ├ƒ├ƒ├ƒ├ƒ├ƒ├ƒ├ƒ├ƒ  ├ƒ├ƒ├ƒ├ƒ├ƒ├ƒ├ƒ├ƒ  ├ƒ├ƒ├ƒ├ƒ├ƒ├ƒ├ƒ├ƒ  ├ƒ├ƒ├ƒ├ƒ├ƒ├ƒ",
      " т▒т▒                     πÇ┼▒▒┼▒   ├ƒ┼▒┼▒▒ πÇ┼▒▒┼ ├ƒπÇ┼▒▒┼ ├ƒ  πÇ┼▒▒┼  ├ƒ├ƒ├ƒ├ƒ  πÇ┼▒▒┼  ├ƒ├ƒ├ƒ├ƒ  πÇ┼▒▒┼  ├ƒ├ƒ├ƒ├ƒ├ƒ  πÇ┼▒▒┼  ├ƒ├ƒ├ƒ├ƒ├ƒ",
      " т▒т▒                     ├ƒ├ƒ├ƒ├ƒ├ƒ├ƒ ├ƒ├ƒ├ƒ ├ƒ├ƒ├ƒ  ├ƒ├ƒ├ƒ├ƒ├ƒ├ƒ├ƒ  ├ƒ├ƒ├ƒ├ƒ├ƒ├ƒ├ƒ  ├ƒ├ƒ├ƒ├ƒ├ƒ├ƒ  ├ƒ├ƒ├ƒ├ƒ├ƒ├ƒ├ƒ  ├ƒ├ƒ├ƒ├ƒ├ƒ├ƒ├ƒ  ├ƒ├ƒ├ƒ├ƒ├ƒ├ƒ  ├ƒ├ƒ├ƒ├ƒ├ƒ├ƒ",
      "",
      " т▒▒                                                                                                т▓т▓",
      " т▒▒                                                                                                т▓т▓",
      "                                                                                                    т▓т▓",
      "                                                                                                    т▓т▓",
      "├ƒ    ┼ú├ƒ┼▒┼ ▒ ├£      ┼ú├£├ƒ                ├£├ƒ├£┼ú   ┼ú├£├ƒ                  ├£├ƒ┼                   ┼ú├£├ƒ       ├ƒ┼▒┼ ├£      ┼┼▒┼▒┼",
      "├ƒ├ƒ├ƒ   ├£┼▒┼ ├ƒ         ├ƒ┼▒┼ ├£    ┼ú├£┼▒┼ ┼  ├£┼▒┼ ├ƒ       ├ƒ├£┼▒┼ ┼▒┼ ┼▒       ├ƒ├£┼▒┼ ├ƒ       ├ƒ┼▒┼▒┼ ┼  ├ƒ├£┼▒▒├ƒ├£    ┼▒┼▒┼▒т▒",
      "   ├£┼▒┼▒┼▒┼▒┼▒┼▒┼ ┼▒       2o12   ├£┼▒┼▒┼▒┼ ┼ ├£      ┼▒┼▒┼▒┼▒┼▒┼ ┼▒┼▒┼ ├ƒ       ┼▒┼▒┼▒┼▒ ├ƒ├ƒ┼ú   ┼ú├ƒ├£┼▒┼ ┼▒┼▒┼▒┼     ├ƒ├£┼ú┼▒т▒┼▒",
      "  ├ƒ┼▒┼▒┼▒┼▒┼▒┼▒┼▒┼▒┼ ├£├£  ├£├£┼ú    ├£┼▒┼▒┼▒┼▒┼▒┼▒┼   ┼▒┼▒┼▒┼▒┼▒┼▒┼▒┼▒┼▒┼▒┼ ├ƒ├£├£┼▒┼▒┼▒┼▒┼▒┼▒┼▒┼▒┼▒┼▒┼ ┼▒┼▒┼▒┼▒┼▒┼▒┼▒┼▒┼      ┼ú├ƒ┼▒┼▒",
      " ┼ú├ƒ  ├ƒ┼▒┼▒┼▒┼▒┼▒┼▒┼▒┼▒┼▒┼▒┼▒┼▒┼▒┼▒┼▒┼▒┼▒┼▒┼▒┼▒┼▒┼▒┼▒┼▒┼▒┼▒┼▒┼▒┼▒┼▒┼▒┼▒┼▒┼▒┼▒┼▒┼▒┼▒┼▒┼▒┼▒┼▒┼▒┼▒┼▒┼▒┼▒┼▒┼▒┼▒┼▒┼▒┼▒┼▒┼▒┼▒┼▒┼▒ ├£├£    ┼▒т▒┼▒",
      " ┼ú├£   ┼▒┼▒┼▒┼▒┼▒┼▒┼▒┼▒┼▒┼▒┼▒┼▒┼▒┼▒┼▒┼▒┼▒┼▒┼▒┼▒┼▒┼▒┼▒┼▒┼▒┼▒┼▒┼▒┼▒┼▒┼▒┼▒┼▒┼▒┼▒┼▒┼▒┼▒┼▒┼▒┼▒┼▒┼▒┼▒┼▒┼▒┼▒┼▒┼▒┼▒┼▒┼▒┼▒┼▒┼▒┼▒┼▒┼▒┼▒┼▒┼▒▒   ┼▒┼▒т▒",
      "      ┼▒┼▒┼▒┼▒┼▒┼▒┼▒┼▒┼▒┼▒┼▒┼▒┼▒┼▒┼▒┼▒┼▒┼▒┼▒┼▒┼▒┼▒┼▒┼▒┼▒┼▒┼▒┼▒┼▒┼▒┼▒┼▒┼▒┼▒┼▒┼▒┼▒┼▒┼▒┼▒┼▒┼▒┼▒┼▒┼▒┼▒┼▒┼▒┼▒┼▒┼▒┼▒┼▒┼▒┼▒┼▒┼▒┼▒ ├£├ƒ┼▒┼▒┼▒т▒┼▒",
      "       ┼▒┼▒┼▒┼▒┼▒┼▒┼▒┼▒┼▒┼▒┼▒┼▒┼▒┼▒┼▒┼▒┼▒┼▒┼▒┼▒┼▒┼▒┼▒┼▒┼▒┼▒┼▒┼▒┼▒┼▒┼▒┼▒┼▒┼▒┼▒┼▒┼▒┼▒┼▒┼▒┼▒┼▒┼▒┼▒┼▒┼▒┼▒┼▒┼▒┼▒┼▒┼▒┼▒┼▒┼▒┼▒┼▒├ƒ├£┼▒┼▒т▒┼▒┼▒",
      "  ├ƒ├ƒ├ƒ    ┼▒┼▒┼▒┼▒┼▒┼▒┼▒┼▒┼▒▒     ┼ú├£ ┼▒┼▒┼▒┼▒┼▒├ƒ    ┼▒┼▒┼▒┼▒┼▒┼▒┼▒┼ ├£    ├ƒ┼▒┼ ├£     ┼▒т▒┼▒┼▒┼▒т▒▒    ├ƒ├£┼ú    ┼ú├ƒ├£  ┼▒┼▒т▒",
      "     ┼▒┼▒┼▒┼▒┼▒┼▒┼▒┼▒┼▒┼▒▒  ├£ ├£├£┼ú├ƒ┼▒┼▒┼▒┼▒┼▒┼ ├ƒ       ┼▒┼▒┼▒┼▒┼ ├ƒ┼▒┼ ├ƒ├ƒ┼ú    ┼▒┼▒▒┼▒┼▒т▒              ├ƒ┼▒├£┼ú   ┼▒т▒",
      "      ├ƒ┼▒┼▒┼▒┼▒┼▒┼▒┼ ├£ ├ƒ├£├£┼ú ┼▒┼▒┼▒▒ ├ƒ           ├ƒ┼▒┼▒├ƒ├ƒ┼ú        ┼▒т▒┼▒┼▒         nOs\\KLIN    ┼ú├ƒ├£  т▒┼▒",
      "       ├ƒ├ƒ├ƒ ┼▒┼▒┼▒┼▒▒├ƒ  ┼ú├£├£┼ú┼▒▒                ├ƒ├ƒ┼ú          ┼▒┼▒т▒                        ├£├ƒ ┼▒",
      "         ├ƒ├£ ├ƒ┼▒┼▒▒ ├ƒ     ├£┼ú                 ├£├ƒ┼ú              т▒┼▒├ƒ├£",
      "            ├ƒ├£┼▒▒├ƒ         ┼ú├ú                              ├£┼▒ ├ƒ",
      "              ┼ú├ƒ├ƒ├ƒ┼▒                                     ┼ú├ƒ├ƒ├ƒ"
    ]
  }
}
